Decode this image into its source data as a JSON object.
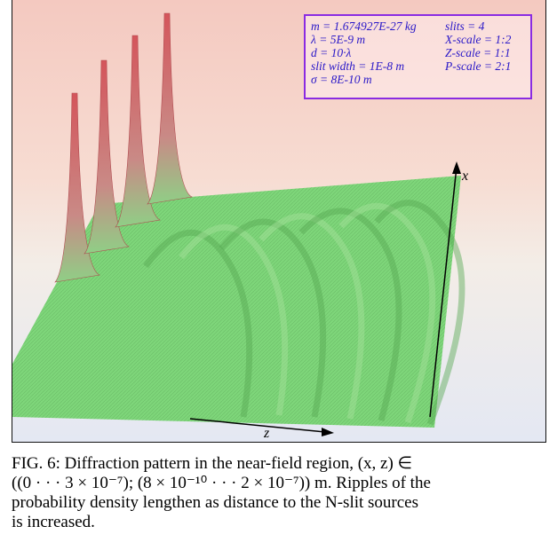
{
  "figure": {
    "parameters": [
      [
        "m = 1.674927E-27 kg",
        "slits = 4"
      ],
      [
        "λ = 5E-9 m",
        "X-scale = 1:2"
      ],
      [
        "d = 10·λ",
        "Z-scale = 1:1"
      ],
      [
        "slit width = 1E-8 m",
        "P-scale = 2:1"
      ],
      [
        "σ = 8E-10 m",
        ""
      ]
    ],
    "axis_x_label": "x",
    "axis_z_label": "z",
    "colors": {
      "surface": "#7fd87a",
      "surface_dark": "#4fa84f",
      "peak": "#d9686a",
      "param_border": "#8a2be2",
      "param_text": "#2a18c8"
    }
  },
  "caption": {
    "line1": "FIG. 6:  Diffraction pattern in the near-field region, (x, z) ∈",
    "line2": "((0 · · · 3 × 10⁻⁷); (8 × 10⁻¹⁰ · · · 2 × 10⁻⁷)) m.  Ripples of the",
    "line3": "probability density lengthen as distance to the N-slit sources",
    "line4": "is increased."
  }
}
